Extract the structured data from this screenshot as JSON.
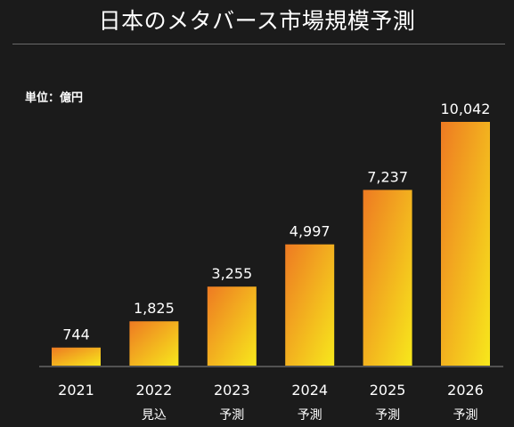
{
  "chart_data": {
    "type": "bar",
    "title": "日本のメタバース市場規模予測",
    "unit_label": "単位：億円",
    "categories": [
      "2021",
      "2022",
      "2023",
      "2024",
      "2025",
      "2026"
    ],
    "sublabels": [
      "",
      "見込",
      "予測",
      "予測",
      "予測",
      "予測"
    ],
    "values": [
      744,
      1825,
      3255,
      4997,
      7237,
      10042
    ],
    "value_labels": [
      "744",
      "1,825",
      "3,255",
      "4,997",
      "7,237",
      "10,042"
    ],
    "ylim": [
      0,
      10042
    ],
    "grid": false,
    "legend": "none",
    "colors": {
      "background": "#1b1b1b",
      "bar_gradient_start": "#ee7a22",
      "bar_gradient_end": "#f7e81c",
      "text": "#ffffff",
      "axis": "#8a8a8a"
    }
  }
}
